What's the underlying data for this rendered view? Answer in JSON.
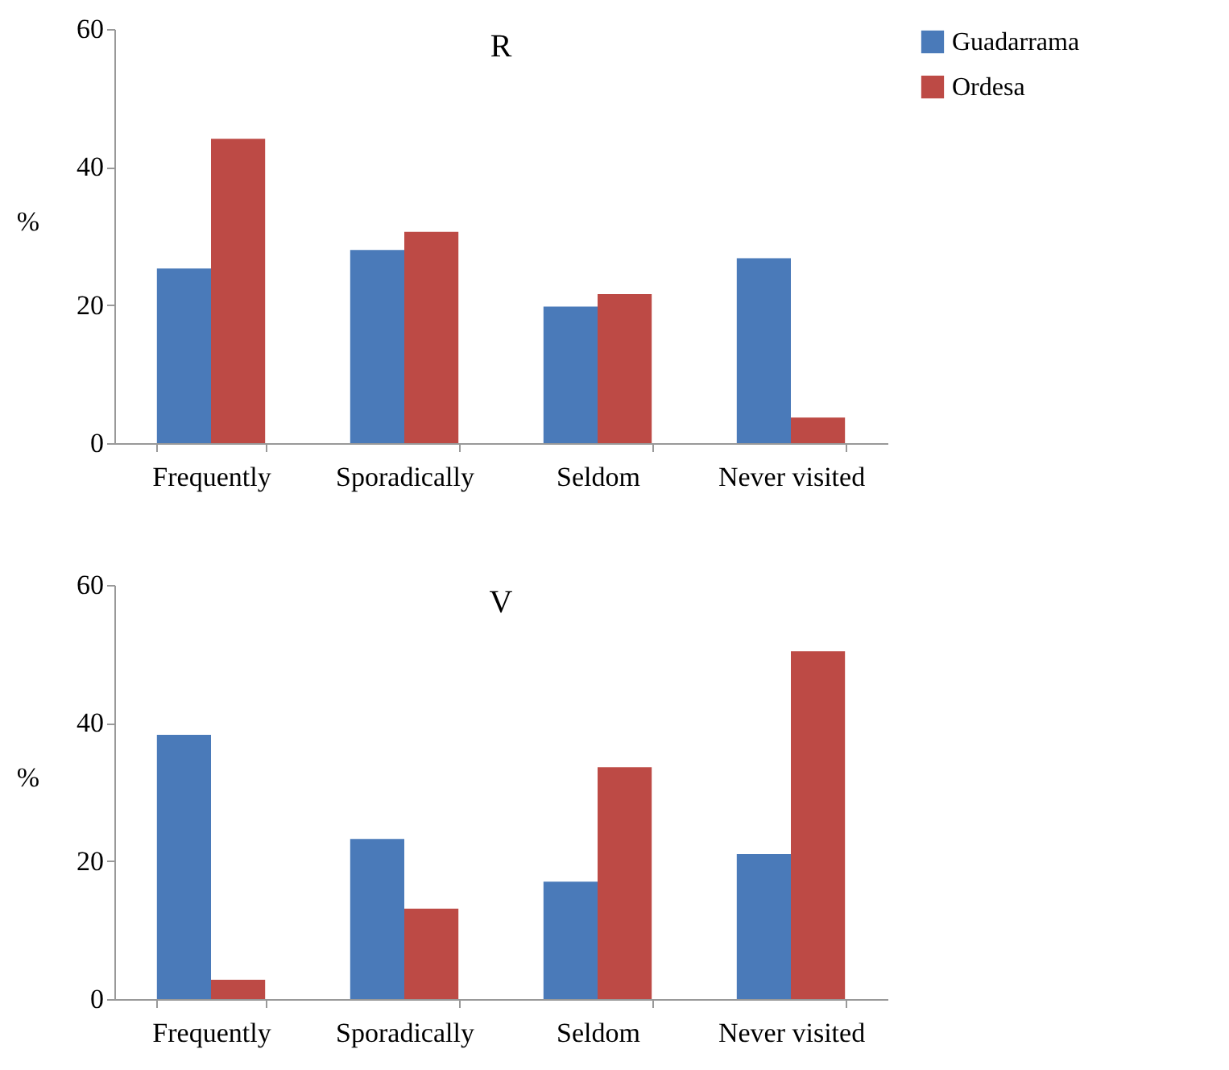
{
  "chart_data": [
    {
      "type": "bar",
      "title": "R",
      "ylabel": "%",
      "categories": [
        "Frequently",
        "Sporadically",
        "Seldom",
        "Never visited"
      ],
      "series": [
        {
          "name": "Guadarrama",
          "color": "#4a7ab9",
          "values": [
            25.3,
            28,
            19.8,
            26.8
          ]
        },
        {
          "name": "Ordesa",
          "color": "#bd4a45",
          "values": [
            44.1,
            30.6,
            21.6,
            3.7
          ]
        }
      ],
      "ylim": [
        0,
        60
      ],
      "yticks": [
        0,
        20,
        40,
        60
      ],
      "grid": false,
      "legend": "right"
    },
    {
      "type": "bar",
      "title": "V",
      "ylabel": "%",
      "categories": [
        "Frequently",
        "Sporadically",
        "Seldom",
        "Never visited"
      ],
      "series": [
        {
          "name": "Guadarrama",
          "color": "#4a7ab9",
          "values": [
            38.3,
            23.2,
            17,
            21
          ]
        },
        {
          "name": "Ordesa",
          "color": "#bd4a45",
          "values": [
            2.8,
            13.1,
            33.6,
            50.4
          ]
        }
      ],
      "ylim": [
        0,
        60
      ],
      "yticks": [
        0,
        20,
        40,
        60
      ],
      "grid": false,
      "legend": "right"
    }
  ]
}
